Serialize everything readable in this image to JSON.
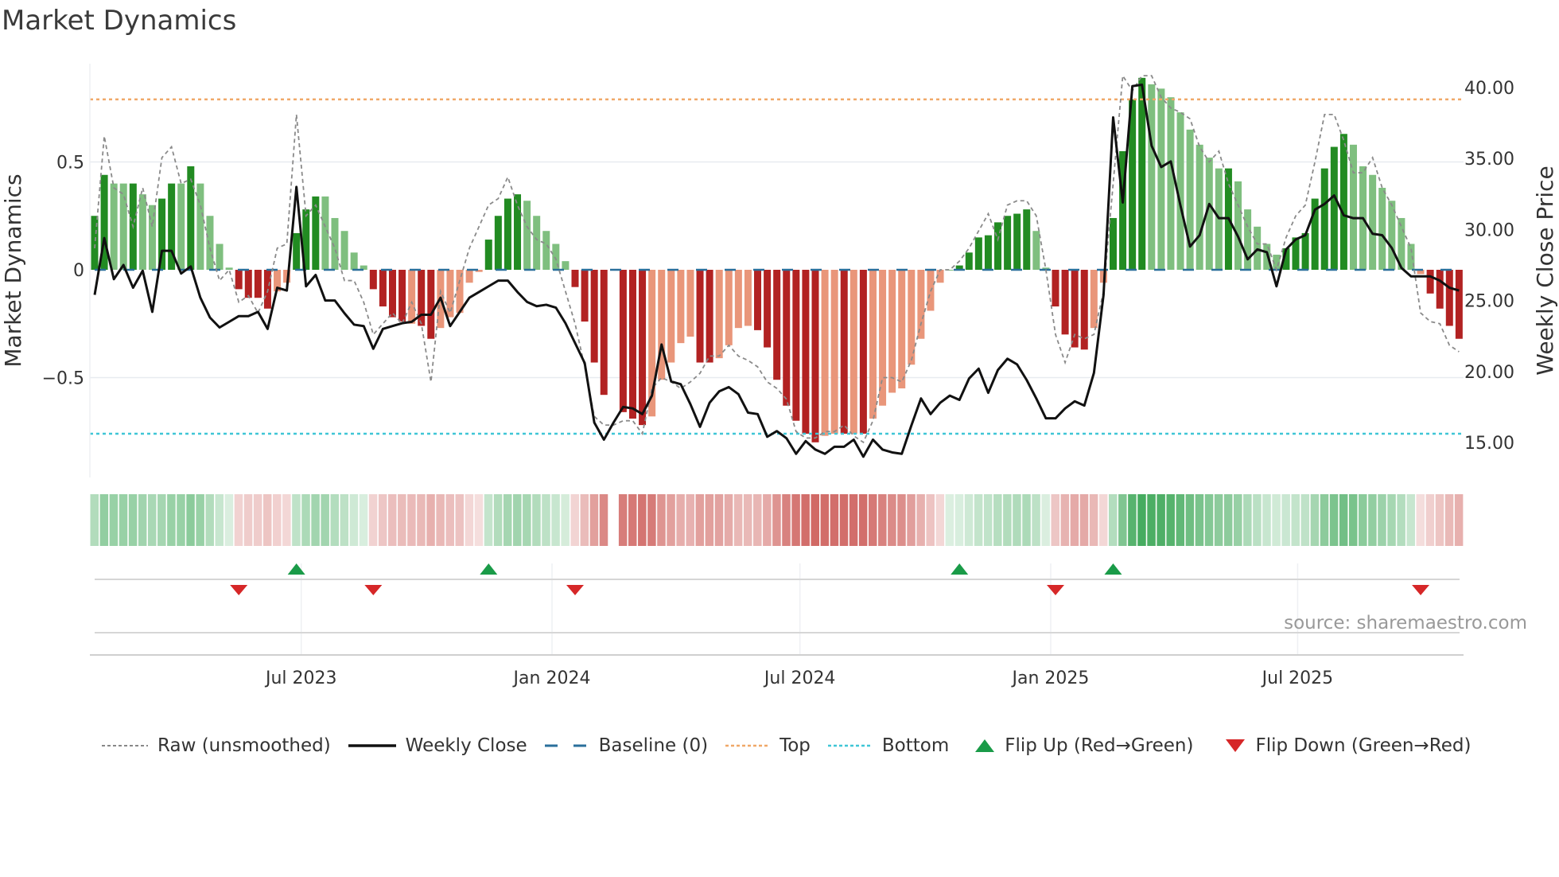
{
  "title": "Market Dynamics",
  "source": "source: sharemaestro.com",
  "legend": {
    "raw": "Raw (unsmoothed)",
    "close": "Weekly Close",
    "baseline": "Baseline (0)",
    "top": "Top",
    "bottom": "Bottom",
    "flip_up": "Flip Up (Red→Green)",
    "flip_down": "Flip Down (Green→Red)"
  },
  "colors": {
    "strong_green": "#228b22",
    "weak_green": "#7fbf7f",
    "strong_red": "#b22222",
    "weak_red": "#e9967a",
    "heat_green": "#3aa655",
    "heat_red": "#c9504c",
    "baseline": "#2a6f9b",
    "top": "#f0a868",
    "bottom": "#3fc6d6",
    "flip_up": "#1a9b48",
    "flip_down": "#d62728"
  },
  "chart_data": {
    "type": "bar",
    "title": "Market Dynamics",
    "ylabel": "Market Dynamics",
    "y2label": "Weekly Close Price",
    "ylim": [
      -1.0,
      0.95
    ],
    "y2lim": [
      12.5,
      43.0
    ],
    "yticks": [
      {
        "v": 0.5,
        "label": "0.5"
      },
      {
        "v": 0,
        "label": "0"
      },
      {
        "v": -0.5,
        "label": "−0.5"
      }
    ],
    "y2ticks": [
      {
        "v": 40,
        "label": "40.00"
      },
      {
        "v": 35,
        "label": "35.00"
      },
      {
        "v": 30,
        "label": "30.00"
      },
      {
        "v": 25,
        "label": "25.00"
      },
      {
        "v": 20,
        "label": "20.00"
      },
      {
        "v": 15,
        "label": "15.00"
      }
    ],
    "xticks": [
      {
        "week": 21.5,
        "label": "Jul 2023"
      },
      {
        "week": 47.6,
        "label": "Jan 2024"
      },
      {
        "week": 73.4,
        "label": "Jul 2024"
      },
      {
        "week": 99.5,
        "label": "Jan 2025"
      },
      {
        "week": 125.2,
        "label": "Jul 2025"
      }
    ],
    "top_level": 0.79,
    "bottom_level": -0.76,
    "baseline": 0,
    "momentum": [
      0.25,
      0.44,
      0.4,
      0.4,
      0.4,
      0.35,
      0.3,
      0.33,
      0.4,
      0.4,
      0.48,
      0.4,
      0.25,
      0.12,
      0.01,
      -0.09,
      -0.13,
      -0.13,
      -0.18,
      -0.1,
      -0.06,
      0.17,
      0.28,
      0.34,
      0.34,
      0.24,
      0.18,
      0.08,
      0.02,
      -0.09,
      -0.17,
      -0.22,
      -0.24,
      -0.25,
      -0.26,
      -0.32,
      -0.27,
      -0.22,
      -0.2,
      -0.06,
      -0.01,
      0.14,
      0.25,
      0.33,
      0.35,
      0.32,
      0.25,
      0.18,
      0.12,
      0.04,
      -0.08,
      -0.24,
      -0.43,
      -0.58,
      null,
      -0.66,
      -0.69,
      -0.72,
      -0.68,
      -0.51,
      -0.43,
      -0.34,
      -0.31,
      -0.43,
      -0.43,
      -0.41,
      -0.35,
      -0.27,
      -0.26,
      -0.28,
      -0.36,
      -0.51,
      -0.63,
      -0.7,
      -0.76,
      -0.8,
      -0.77,
      -0.76,
      -0.76,
      -0.76,
      -0.76,
      -0.69,
      -0.63,
      -0.57,
      -0.55,
      -0.44,
      -0.32,
      -0.19,
      -0.06,
      0.0,
      0.02,
      0.08,
      0.15,
      0.16,
      0.22,
      0.25,
      0.26,
      0.28,
      0.18,
      0.01,
      -0.17,
      -0.3,
      -0.36,
      -0.37,
      -0.27,
      -0.06,
      0.24,
      0.55,
      0.79,
      0.89,
      0.86,
      0.84,
      0.8,
      0.73,
      0.65,
      0.58,
      0.52,
      0.47,
      0.47,
      0.41,
      0.28,
      0.2,
      0.12,
      0.07,
      0.1,
      0.15,
      0.17,
      0.33,
      0.47,
      0.57,
      0.63,
      0.58,
      0.48,
      0.44,
      0.38,
      0.32,
      0.24,
      0.12,
      -0.02,
      -0.11,
      -0.18,
      -0.26,
      -0.32
    ],
    "strengthening": [
      1,
      1,
      0,
      0,
      1,
      0,
      0,
      1,
      1,
      0,
      1,
      0,
      0,
      0,
      0,
      1,
      1,
      1,
      1,
      0,
      0,
      1,
      1,
      1,
      0,
      0,
      0,
      0,
      0,
      1,
      1,
      1,
      1,
      0,
      1,
      1,
      0,
      0,
      0,
      0,
      0,
      1,
      1,
      1,
      1,
      0,
      0,
      0,
      0,
      0,
      1,
      1,
      1,
      1,
      0,
      1,
      1,
      1,
      0,
      0,
      0,
      0,
      0,
      1,
      1,
      0,
      0,
      0,
      0,
      1,
      1,
      1,
      1,
      1,
      1,
      1,
      0,
      0,
      1,
      0,
      1,
      0,
      0,
      0,
      0,
      0,
      0,
      0,
      0,
      0,
      1,
      1,
      1,
      1,
      1,
      1,
      1,
      1,
      0,
      0,
      1,
      1,
      1,
      1,
      0,
      0,
      1,
      1,
      1,
      1,
      0,
      0,
      0,
      0,
      0,
      0,
      0,
      0,
      1,
      0,
      0,
      0,
      0,
      0,
      1,
      1,
      1,
      1,
      1,
      1,
      1,
      0,
      0,
      0,
      0,
      0,
      0,
      0,
      0,
      1,
      1,
      1,
      1
    ],
    "raw": [
      0.1,
      0.62,
      0.38,
      0.35,
      0.2,
      0.38,
      0.2,
      0.52,
      0.57,
      0.4,
      0.42,
      0.3,
      0.1,
      -0.05,
      0.0,
      -0.15,
      -0.12,
      -0.2,
      -0.1,
      0.1,
      0.12,
      0.72,
      0.25,
      0.3,
      0.2,
      0.1,
      -0.05,
      -0.05,
      -0.15,
      -0.3,
      -0.25,
      -0.2,
      -0.25,
      -0.15,
      -0.25,
      -0.52,
      -0.1,
      -0.2,
      -0.05,
      0.1,
      0.2,
      0.3,
      0.33,
      0.43,
      0.3,
      0.2,
      0.14,
      0.12,
      0.05,
      -0.1,
      -0.25,
      -0.45,
      -0.68,
      -0.72,
      -0.72,
      -0.7,
      -0.7,
      -0.76,
      -0.55,
      -0.5,
      -0.52,
      -0.55,
      -0.52,
      -0.48,
      -0.4,
      -0.4,
      -0.35,
      -0.4,
      -0.42,
      -0.45,
      -0.52,
      -0.55,
      -0.6,
      -0.75,
      -0.78,
      -0.78,
      -0.75,
      -0.75,
      -0.72,
      -0.77,
      -0.8,
      -0.7,
      -0.5,
      -0.5,
      -0.52,
      -0.42,
      -0.25,
      -0.1,
      0.0,
      0.0,
      0.04,
      0.1,
      0.18,
      0.26,
      0.14,
      0.3,
      0.32,
      0.32,
      0.25,
      0.0,
      -0.3,
      -0.43,
      -0.3,
      -0.32,
      -0.3,
      -0.1,
      0.4,
      0.9,
      0.83,
      0.9,
      0.9,
      0.8,
      0.75,
      0.73,
      0.7,
      0.57,
      0.5,
      0.55,
      0.4,
      0.3,
      0.2,
      0.12,
      0.12,
      0.0,
      0.15,
      0.25,
      0.3,
      0.5,
      0.72,
      0.72,
      0.6,
      0.45,
      0.45,
      0.52,
      0.38,
      0.3,
      0.2,
      0.1,
      -0.2,
      -0.24,
      -0.25,
      -0.35,
      -0.38
    ],
    "weekly_close": [
      25.4,
      29.4,
      26.5,
      27.5,
      25.9,
      27.1,
      24.2,
      28.5,
      28.5,
      26.9,
      27.4,
      25.2,
      23.8,
      23.1,
      23.5,
      23.9,
      23.9,
      24.2,
      23.0,
      25.9,
      25.7,
      33.0,
      26.0,
      26.8,
      25.0,
      25.0,
      24.1,
      23.3,
      23.2,
      21.6,
      23.0,
      23.2,
      23.4,
      23.5,
      24.0,
      24.0,
      25.2,
      23.2,
      24.2,
      25.2,
      25.6,
      26.0,
      26.4,
      26.4,
      25.6,
      24.9,
      24.6,
      24.7,
      24.5,
      23.4,
      22.0,
      20.6,
      16.4,
      15.2,
      16.4,
      17.5,
      17.4,
      17.0,
      18.3,
      21.9,
      19.3,
      19.1,
      17.7,
      16.1,
      17.8,
      18.6,
      18.9,
      18.4,
      17.1,
      17.0,
      15.4,
      15.8,
      15.3,
      14.2,
      15.1,
      14.5,
      14.2,
      14.7,
      14.7,
      15.2,
      14.0,
      15.2,
      14.5,
      14.3,
      14.2,
      16.2,
      18.1,
      17.0,
      17.8,
      18.3,
      18.0,
      19.5,
      20.2,
      18.5,
      20.1,
      20.9,
      20.5,
      19.4,
      18.1,
      16.7,
      16.7,
      17.4,
      17.9,
      17.6,
      19.9,
      25.4,
      37.9,
      31.9,
      40.1,
      40.2,
      35.9,
      34.4,
      34.8,
      31.7,
      28.8,
      29.6,
      31.8,
      30.8,
      30.8,
      29.5,
      27.9,
      28.6,
      28.4,
      26.0,
      28.6,
      29.3,
      29.6,
      31.4,
      31.8,
      32.4,
      31.0,
      30.8,
      30.8,
      29.7,
      29.6,
      28.7,
      27.3,
      26.7,
      26.7,
      26.7,
      26.4,
      25.9,
      25.7
    ],
    "flip_up_weeks": [
      21,
      41,
      90,
      106
    ],
    "flip_down_weeks": [
      15,
      29,
      50,
      100,
      138
    ]
  }
}
